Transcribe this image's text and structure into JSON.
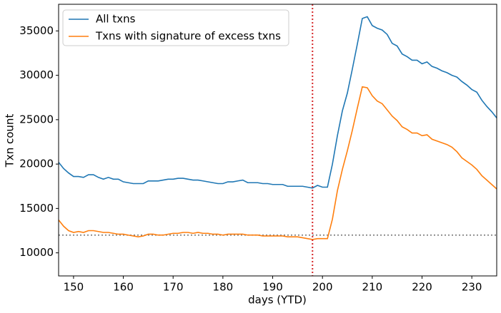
{
  "chart_data": {
    "type": "line",
    "xlabel": "days (YTD)",
    "ylabel": "Txn count",
    "x": [
      147,
      148,
      149,
      150,
      151,
      152,
      153,
      154,
      155,
      156,
      157,
      158,
      159,
      160,
      161,
      162,
      163,
      164,
      165,
      166,
      167,
      168,
      169,
      170,
      171,
      172,
      173,
      174,
      175,
      176,
      177,
      178,
      179,
      180,
      181,
      182,
      183,
      184,
      185,
      186,
      187,
      188,
      189,
      190,
      191,
      192,
      193,
      194,
      195,
      196,
      197,
      198,
      199,
      200,
      201,
      202,
      203,
      204,
      205,
      206,
      207,
      208,
      209,
      210,
      211,
      212,
      213,
      214,
      215,
      216,
      217,
      218,
      219,
      220,
      221,
      222,
      223,
      224,
      225,
      226,
      227,
      228,
      229,
      230,
      231,
      232,
      233,
      234,
      235
    ],
    "series": [
      {
        "name": "All txns",
        "color": "#1f77b4",
        "values": [
          20200,
          19500,
          19000,
          18600,
          18600,
          18500,
          18800,
          18800,
          18500,
          18300,
          18500,
          18300,
          18300,
          18000,
          17900,
          17800,
          17800,
          17800,
          18100,
          18100,
          18100,
          18200,
          18300,
          18300,
          18400,
          18400,
          18300,
          18200,
          18200,
          18100,
          18000,
          17900,
          17800,
          17800,
          18000,
          18000,
          18100,
          18200,
          17900,
          17900,
          17900,
          17800,
          17800,
          17700,
          17700,
          17700,
          17500,
          17500,
          17500,
          17500,
          17400,
          17300,
          17600,
          17400,
          17400,
          20000,
          23200,
          26000,
          28000,
          30700,
          33500,
          36400,
          36600,
          35600,
          35300,
          35100,
          34600,
          33600,
          33300,
          32400,
          32100,
          31700,
          31700,
          31300,
          31500,
          31000,
          30800,
          30500,
          30300,
          30000,
          29800,
          29300,
          28900,
          28400,
          28100,
          27200,
          26500,
          25900,
          25200
        ]
      },
      {
        "name": "Txns with signature of excess txns",
        "color": "#ff7f0e",
        "values": [
          13700,
          13000,
          12500,
          12300,
          12400,
          12300,
          12500,
          12500,
          12400,
          12300,
          12300,
          12200,
          12100,
          12100,
          12000,
          11900,
          11800,
          11900,
          12100,
          12100,
          12000,
          12000,
          12100,
          12200,
          12200,
          12300,
          12300,
          12200,
          12300,
          12200,
          12200,
          12100,
          12100,
          12000,
          12100,
          12100,
          12100,
          12100,
          12000,
          12000,
          12000,
          11900,
          11900,
          11900,
          11900,
          11900,
          11800,
          11800,
          11800,
          11700,
          11600,
          11500,
          11600,
          11600,
          11600,
          13800,
          17000,
          19400,
          21500,
          23800,
          26300,
          28700,
          28600,
          27700,
          27100,
          26800,
          26100,
          25400,
          24900,
          24200,
          23900,
          23500,
          23500,
          23200,
          23300,
          22800,
          22600,
          22400,
          22200,
          21900,
          21400,
          20700,
          20300,
          19900,
          19400,
          18700,
          18200,
          17700,
          17200
        ]
      }
    ],
    "hline": {
      "value": 12000,
      "color": "#808080"
    },
    "vline": {
      "value": 198,
      "color": "#d62728"
    },
    "xlim": [
      147,
      235
    ],
    "xticks": [
      150,
      160,
      170,
      180,
      190,
      200,
      210,
      220,
      230
    ],
    "ylim": [
      7400,
      38000
    ],
    "yticks": [
      10000,
      15000,
      20000,
      25000,
      30000,
      35000
    ],
    "legend": "upper left"
  }
}
